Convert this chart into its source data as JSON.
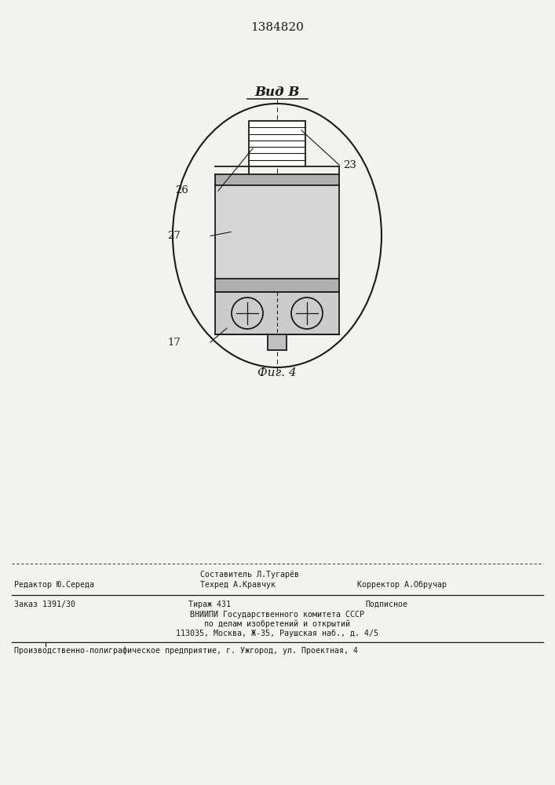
{
  "patent_number": "1384820",
  "view_label": "Вид В",
  "fig_label": "Фиг. 4",
  "bg_color": "#f2f2ee",
  "line_color": "#1a1a1a",
  "footer": {
    "sestavitel": "Составитель Л.Тугарёв",
    "tehred": "Техред А.Кравчук",
    "korrektor": "Корректор А.Обручар",
    "redaktor": "Редактор Ю.Середа",
    "zakaz": "Заказ 1391/30",
    "tirazh": "Тираж 431",
    "podpisnoe": "Подписное",
    "vniippi": "ВНИИПИ Государственного комитета СССР",
    "delam": "по делам изобретений и открытий",
    "address": "113035, Москва, Ж-35, Раушская наб., д. 4/5",
    "enterprise": "Производственно-полиграфическое предприятие, г. Ужгород, ул. Проектная, 4"
  }
}
